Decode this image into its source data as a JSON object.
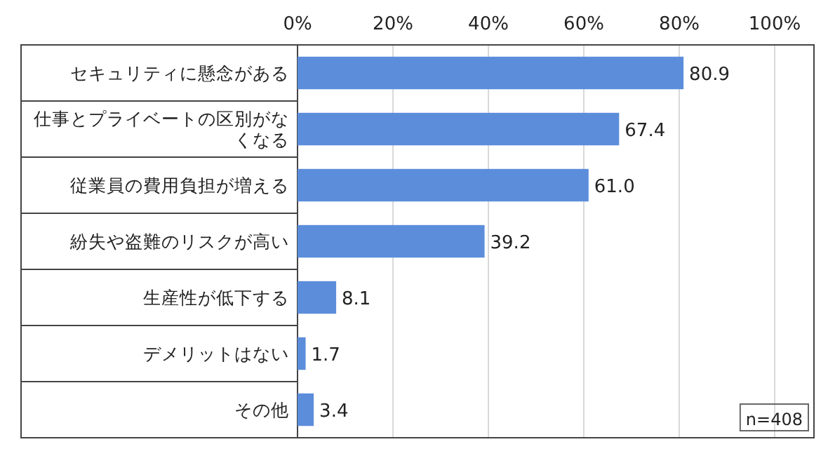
{
  "chart_data": {
    "type": "bar",
    "orientation": "horizontal",
    "categories": [
      "セキュリティに懸念がある",
      "仕事とプライベートの区別がなくなる",
      "従業員の費用負担が増える",
      "紛失や盗難のリスクが高い",
      "生産性が低下する",
      "デメリットはない",
      "その他"
    ],
    "values": [
      80.9,
      67.4,
      61.0,
      39.2,
      8.1,
      1.7,
      3.4
    ],
    "value_labels": [
      "80.9",
      "67.4",
      "61.0",
      "39.2",
      "8.1",
      "1.7",
      "3.4"
    ],
    "color": "#5b8ddb",
    "xlim": [
      0,
      100
    ],
    "xticks": [
      {
        "value": 0,
        "label": "0%"
      },
      {
        "value": 20,
        "label": "20%"
      },
      {
        "value": 40,
        "label": "40%"
      },
      {
        "value": 60,
        "label": "60%"
      },
      {
        "value": 80,
        "label": "80%"
      },
      {
        "value": 100,
        "label": "100%"
      }
    ],
    "grid": "x",
    "annotations": [
      "n=408"
    ]
  }
}
